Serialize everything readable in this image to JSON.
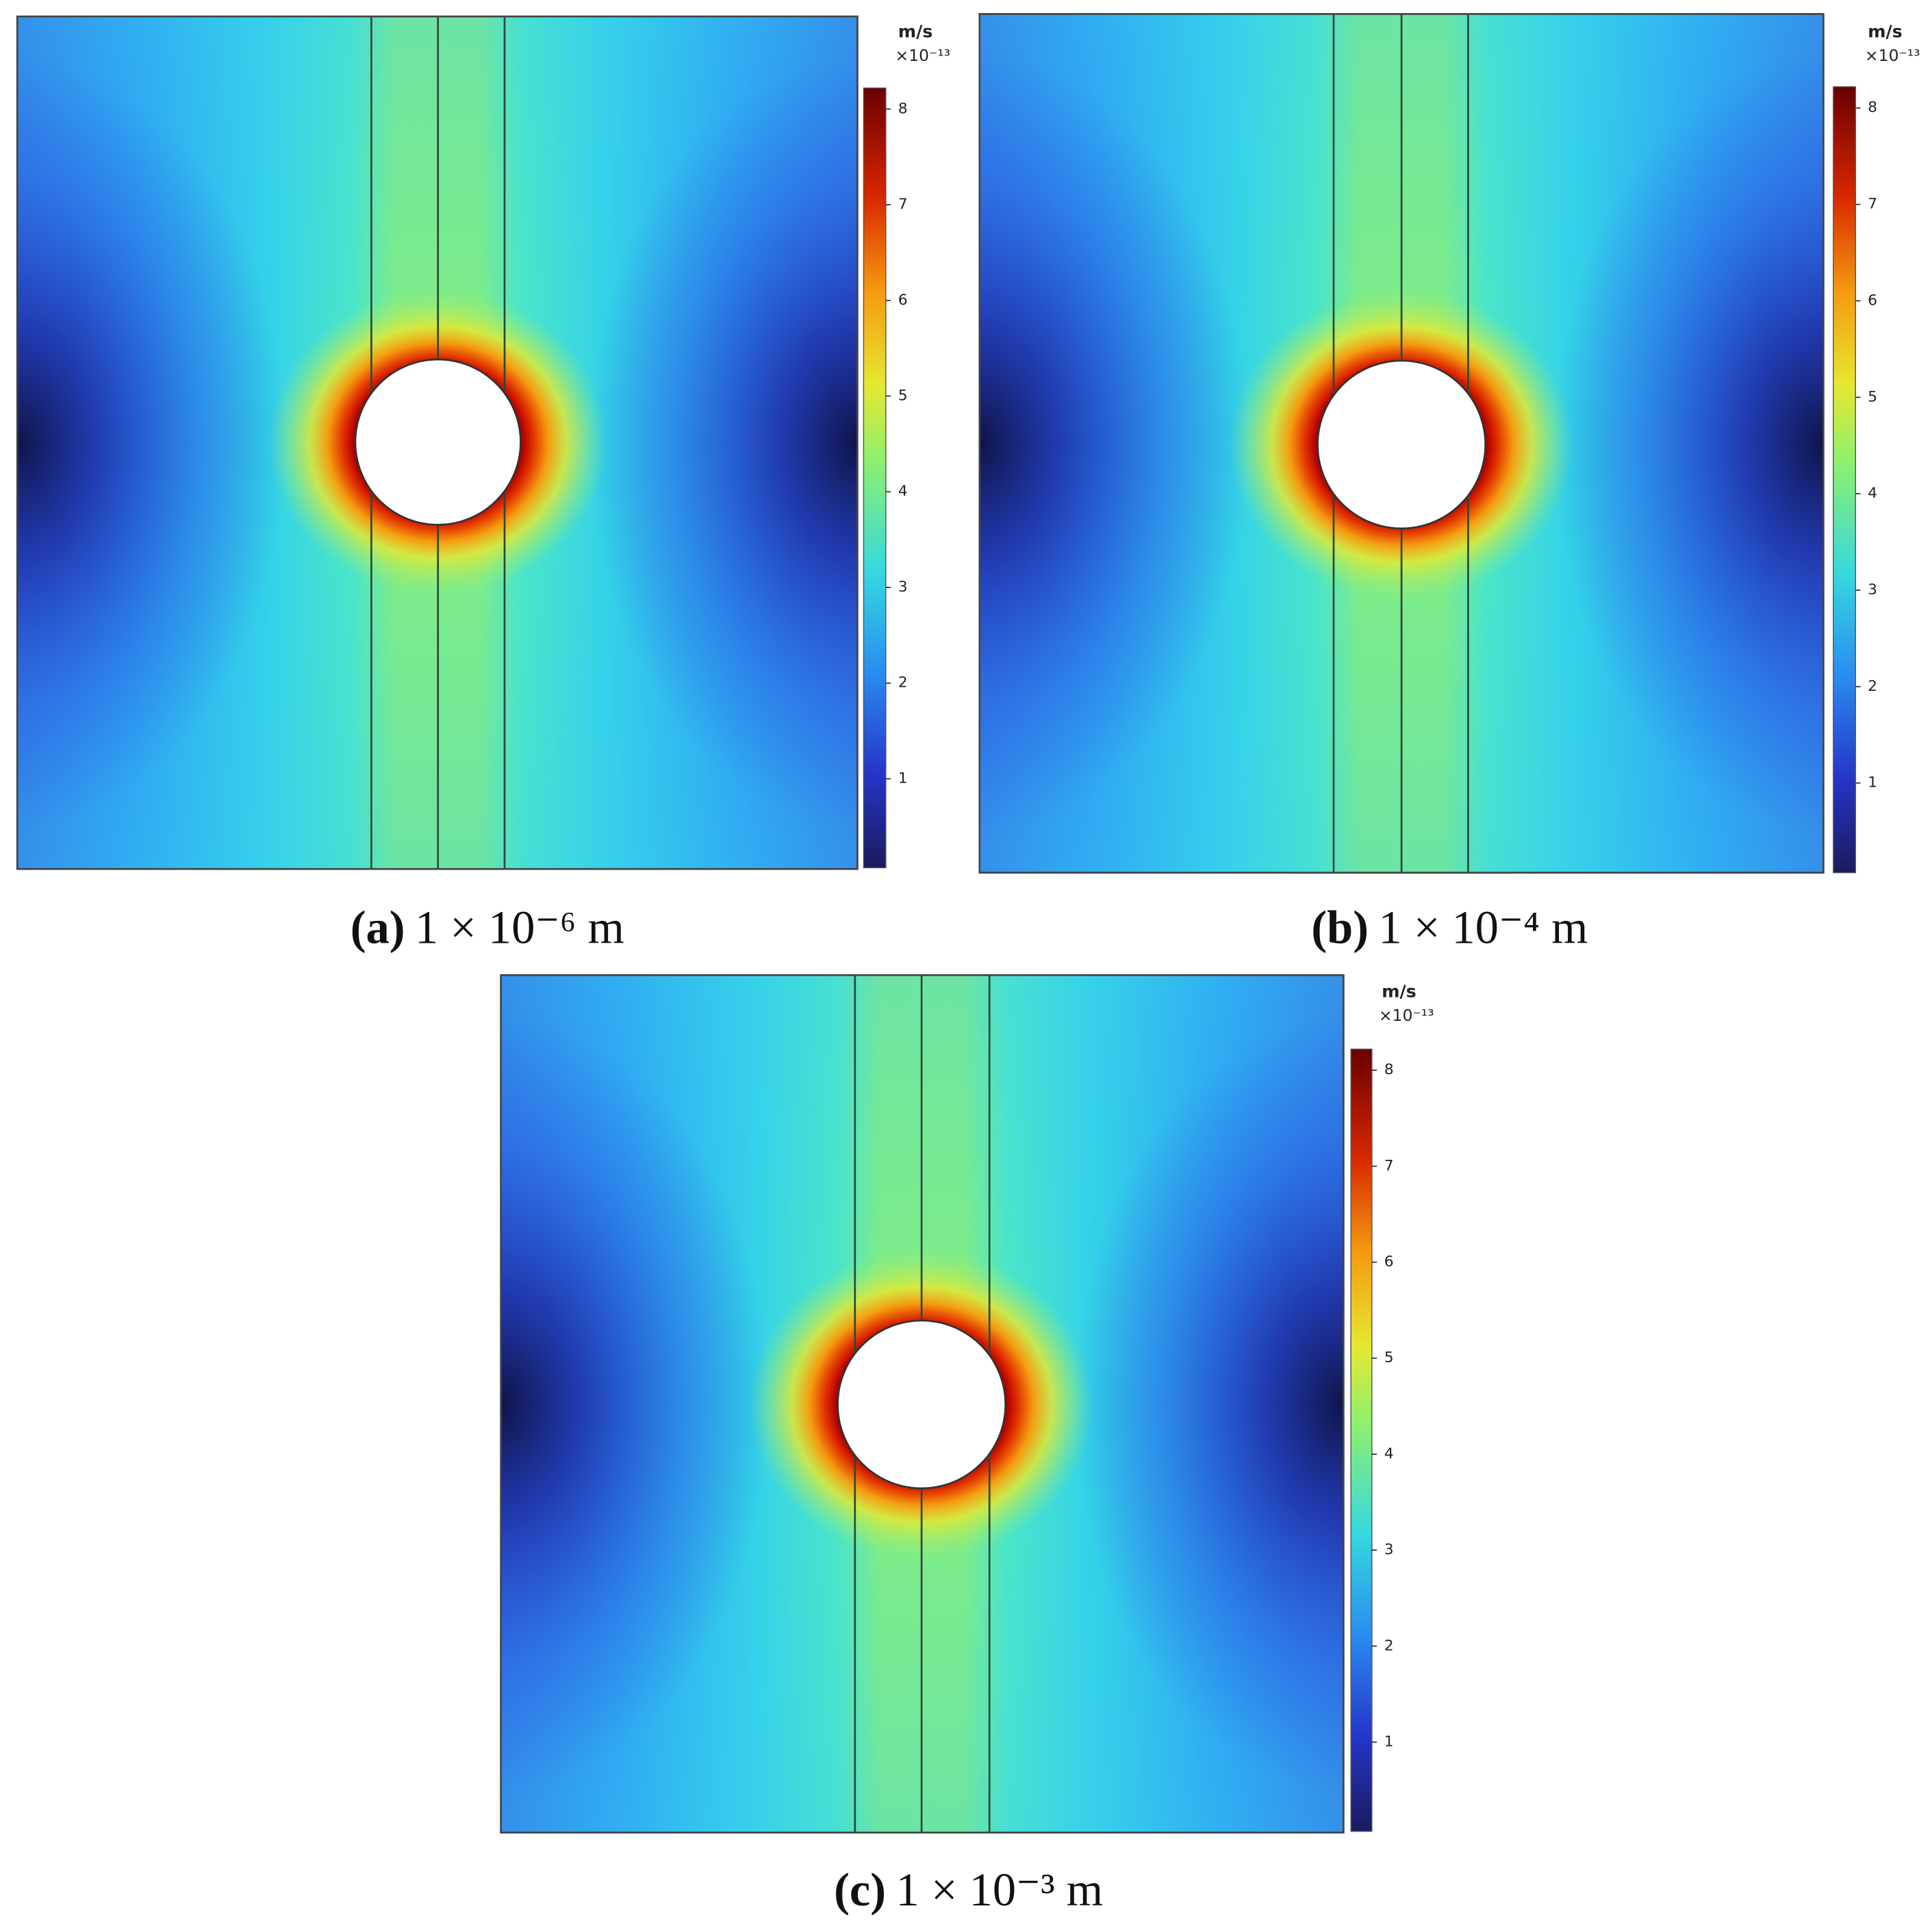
{
  "chart_data": [
    {
      "type": "heatmap",
      "label": "(a)",
      "caption": "1 × 10⁻⁶ m",
      "colorbar": {
        "unit": "m/s",
        "scale": "×10⁻¹³",
        "lim": [
          0.07,
          8.22
        ],
        "ticks": [
          1,
          2,
          3,
          4,
          5,
          6,
          7,
          8
        ]
      }
    },
    {
      "type": "heatmap",
      "label": "(b)",
      "caption": "1 × 10⁻⁴ m",
      "colorbar": {
        "unit": "m/s",
        "scale": "×10⁻¹³",
        "lim": [
          0.07,
          8.22
        ],
        "ticks": [
          1,
          2,
          3,
          4,
          5,
          6,
          7,
          8
        ]
      }
    },
    {
      "type": "heatmap",
      "label": "(c)",
      "caption": "1 × 10⁻³ m",
      "colorbar": {
        "unit": "m/s",
        "scale": "×10⁻¹³",
        "lim": [
          0.07,
          8.22
        ],
        "ticks": [
          1,
          2,
          3,
          4,
          5,
          6,
          7,
          8
        ]
      }
    }
  ]
}
